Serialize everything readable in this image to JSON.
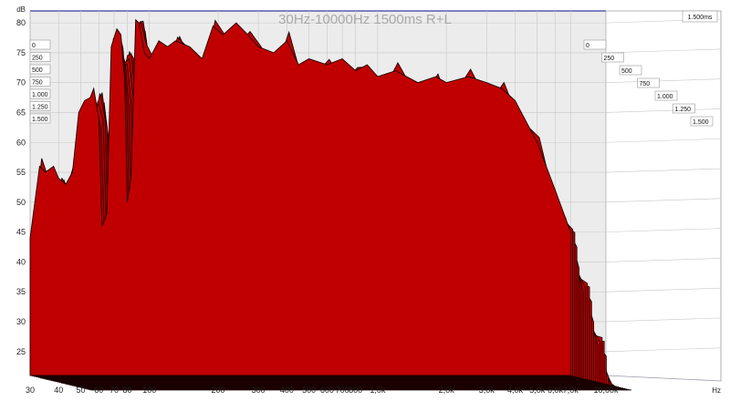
{
  "chart_data": {
    "type": "area",
    "title": "30Hz-10000Hz 1500ms R+L",
    "ylabel": "dB",
    "xlabel": "Hz",
    "ylim": [
      21,
      82
    ],
    "xlim_hz": [
      30,
      10000
    ],
    "y_ticks": [
      "80",
      "75",
      "70",
      "65",
      "60",
      "55",
      "50",
      "45",
      "40",
      "35",
      "30",
      "25"
    ],
    "x_ticks": [
      {
        "hz": 30,
        "label": "30"
      },
      {
        "hz": 40,
        "label": "40"
      },
      {
        "hz": 50,
        "label": "50"
      },
      {
        "hz": 60,
        "label": "60"
      },
      {
        "hz": 70,
        "label": "70"
      },
      {
        "hz": 80,
        "label": "80"
      },
      {
        "hz": 100,
        "label": "100"
      },
      {
        "hz": 200,
        "label": "200"
      },
      {
        "hz": 300,
        "label": "300"
      },
      {
        "hz": 400,
        "label": "400"
      },
      {
        "hz": 500,
        "label": "500"
      },
      {
        "hz": 600,
        "label": "600"
      },
      {
        "hz": 700,
        "label": "700"
      },
      {
        "hz": 800,
        "label": "800"
      },
      {
        "hz": 1000,
        "label": "1,0k"
      },
      {
        "hz": 2000,
        "label": "2,0k"
      },
      {
        "hz": 3000,
        "label": "3,0k"
      },
      {
        "hz": 4000,
        "label": "4,0k"
      },
      {
        "hz": 5000,
        "label": "5,0k"
      },
      {
        "hz": 6000,
        "label": "6,0k"
      },
      {
        "hz": 7000,
        "label": "7,0k"
      },
      {
        "hz": 10000,
        "label": "10,00k"
      }
    ],
    "time_axis_left": [
      "0",
      "250",
      "500",
      "750",
      "1.000",
      "1.250",
      "1.500"
    ],
    "time_axis_right": [
      "0",
      "250",
      "500",
      "750",
      "1.000",
      "1.250",
      "1.500"
    ],
    "time_end_label": "1.500ms",
    "slice_count": 30,
    "colors": {
      "fill": "#c00000",
      "outline": "#1a0000",
      "title": "#a9a9a9"
    },
    "grid": true,
    "series": [
      {
        "time_ms": 0,
        "points": [
          [
            30,
            44
          ],
          [
            33,
            56
          ],
          [
            35,
            55
          ],
          [
            38,
            56
          ],
          [
            40,
            54
          ],
          [
            43,
            53
          ],
          [
            46,
            55
          ],
          [
            49,
            65
          ],
          [
            52,
            67
          ],
          [
            55,
            67.5
          ],
          [
            57,
            69
          ],
          [
            60,
            64
          ],
          [
            62,
            46
          ],
          [
            65,
            48
          ],
          [
            68,
            76
          ],
          [
            72,
            79
          ],
          [
            75,
            78
          ],
          [
            78,
            70
          ],
          [
            80,
            50
          ],
          [
            83,
            54
          ],
          [
            87,
            80.5
          ],
          [
            90,
            80
          ],
          [
            95,
            75
          ],
          [
            100,
            74
          ],
          [
            110,
            77
          ],
          [
            120,
            76
          ],
          [
            130,
            77
          ],
          [
            150,
            76
          ],
          [
            170,
            74
          ],
          [
            190,
            79.5
          ],
          [
            210,
            78
          ],
          [
            240,
            80
          ],
          [
            270,
            78
          ],
          [
            300,
            76
          ],
          [
            350,
            75
          ],
          [
            400,
            77
          ],
          [
            450,
            73
          ],
          [
            500,
            74
          ],
          [
            600,
            73
          ],
          [
            700,
            74
          ],
          [
            800,
            72
          ],
          [
            900,
            73
          ],
          [
            1000,
            71
          ],
          [
            1200,
            72
          ],
          [
            1500,
            70
          ],
          [
            1800,
            71
          ],
          [
            2000,
            70
          ],
          [
            2500,
            71
          ],
          [
            3000,
            70
          ],
          [
            3500,
            69
          ],
          [
            4000,
            67
          ],
          [
            5000,
            60
          ],
          [
            6000,
            52
          ],
          [
            7000,
            45
          ]
        ]
      }
    ]
  }
}
